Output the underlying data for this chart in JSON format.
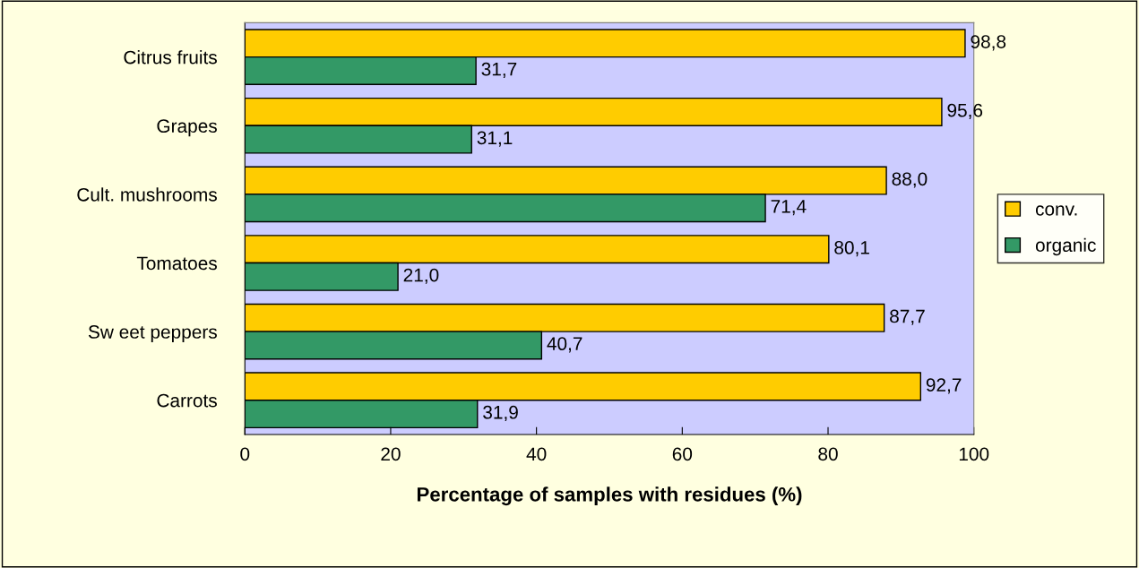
{
  "chart_data": {
    "type": "bar",
    "orientation": "horizontal",
    "xlabel": "Percentage of samples with residues (%)",
    "categories": [
      "Citrus fruits",
      "Grapes",
      "Cult. mushrooms",
      "Tomatoes",
      "Sw eet peppers",
      "Carrots"
    ],
    "series": [
      {
        "name": "conv.",
        "color": "#ffcc00",
        "values": [
          98.8,
          95.6,
          88.0,
          80.1,
          87.7,
          92.7
        ],
        "value_labels": [
          "98,8",
          "95,6",
          "88,0",
          "80,1",
          "87,7",
          "92,7"
        ]
      },
      {
        "name": "organic",
        "color": "#339966",
        "values": [
          31.7,
          31.1,
          71.4,
          21.0,
          40.7,
          31.9
        ],
        "value_labels": [
          "31,7",
          "31,1",
          "71,4",
          "21,0",
          "40,7",
          "31,9"
        ]
      }
    ],
    "xlim": [
      0,
      100
    ],
    "xticks": [
      0,
      20,
      40,
      60,
      80,
      100
    ],
    "grid": false,
    "legend": "right"
  }
}
